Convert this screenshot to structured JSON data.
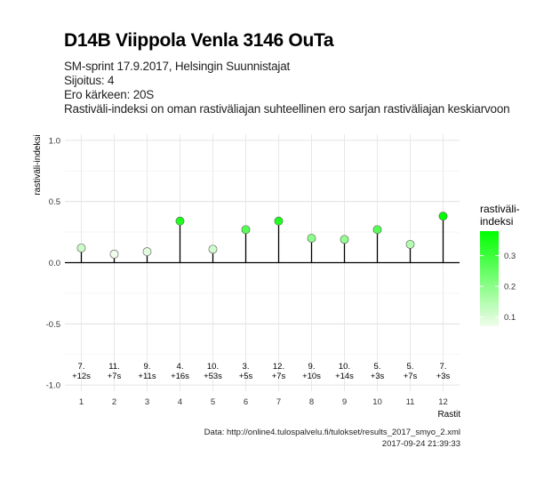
{
  "header": {
    "title": "D14B Viippola Venla 3146 OuTa",
    "subtitle_lines": [
      "SM-sprint 17.9.2017, Helsingin Suunnistajat",
      "Sijoitus: 4",
      "Ero kärkeen: 20S",
      "Rastiväli-indeksi on oman rastiväliajan suhteellinen ero sarjan rastiväliajan keskiarvoon"
    ]
  },
  "caption": {
    "source": "Data: http://online4.tulospalvelu.fi/tulokset/results_2017_smyo_2.xml",
    "timestamp": "2017-09-24 21:39:33"
  },
  "chart_data": {
    "type": "scatter",
    "title": "D14B Viippola Venla 3146 OuTa",
    "xlabel": "Rastit",
    "ylabel": "rastiväli-indeksi",
    "x": [
      1,
      2,
      3,
      4,
      5,
      6,
      7,
      8,
      9,
      10,
      11,
      12
    ],
    "values": [
      0.12,
      0.07,
      0.09,
      0.34,
      0.11,
      0.27,
      0.34,
      0.2,
      0.19,
      0.27,
      0.15,
      0.38
    ],
    "rank_labels": [
      "7.",
      "11.",
      "9.",
      "4.",
      "10.",
      "3.",
      "12.",
      "9.",
      "10.",
      "5.",
      "5.",
      "7."
    ],
    "diff_labels": [
      "+12s",
      "+7s",
      "+11s",
      "+16s",
      "+53s",
      "+5s",
      "+7s",
      "+10s",
      "+14s",
      "+3s",
      "+7s",
      "+3s"
    ],
    "ylim": [
      -1.05,
      1.05
    ],
    "y_ticks": [
      -1.0,
      -0.5,
      0.0,
      0.5,
      1.0
    ],
    "y_tick_labels": [
      "-1.0",
      "-0.5",
      "0.0",
      "0.5",
      "1.0"
    ],
    "x_tick_labels": [
      "1",
      "2",
      "3",
      "4",
      "5",
      "6",
      "7",
      "8",
      "9",
      "10",
      "11",
      "12"
    ],
    "grid": true,
    "legend": {
      "title_lines": [
        "rastiväli-",
        "indeksi"
      ],
      "position": "right",
      "ticks": [
        0.1,
        0.2,
        0.3
      ],
      "tick_labels": [
        "0.1",
        "0.2",
        "0.3"
      ],
      "range": [
        0.07,
        0.38
      ],
      "color_low": "#f0fcec",
      "color_high": "#00ff00"
    }
  }
}
